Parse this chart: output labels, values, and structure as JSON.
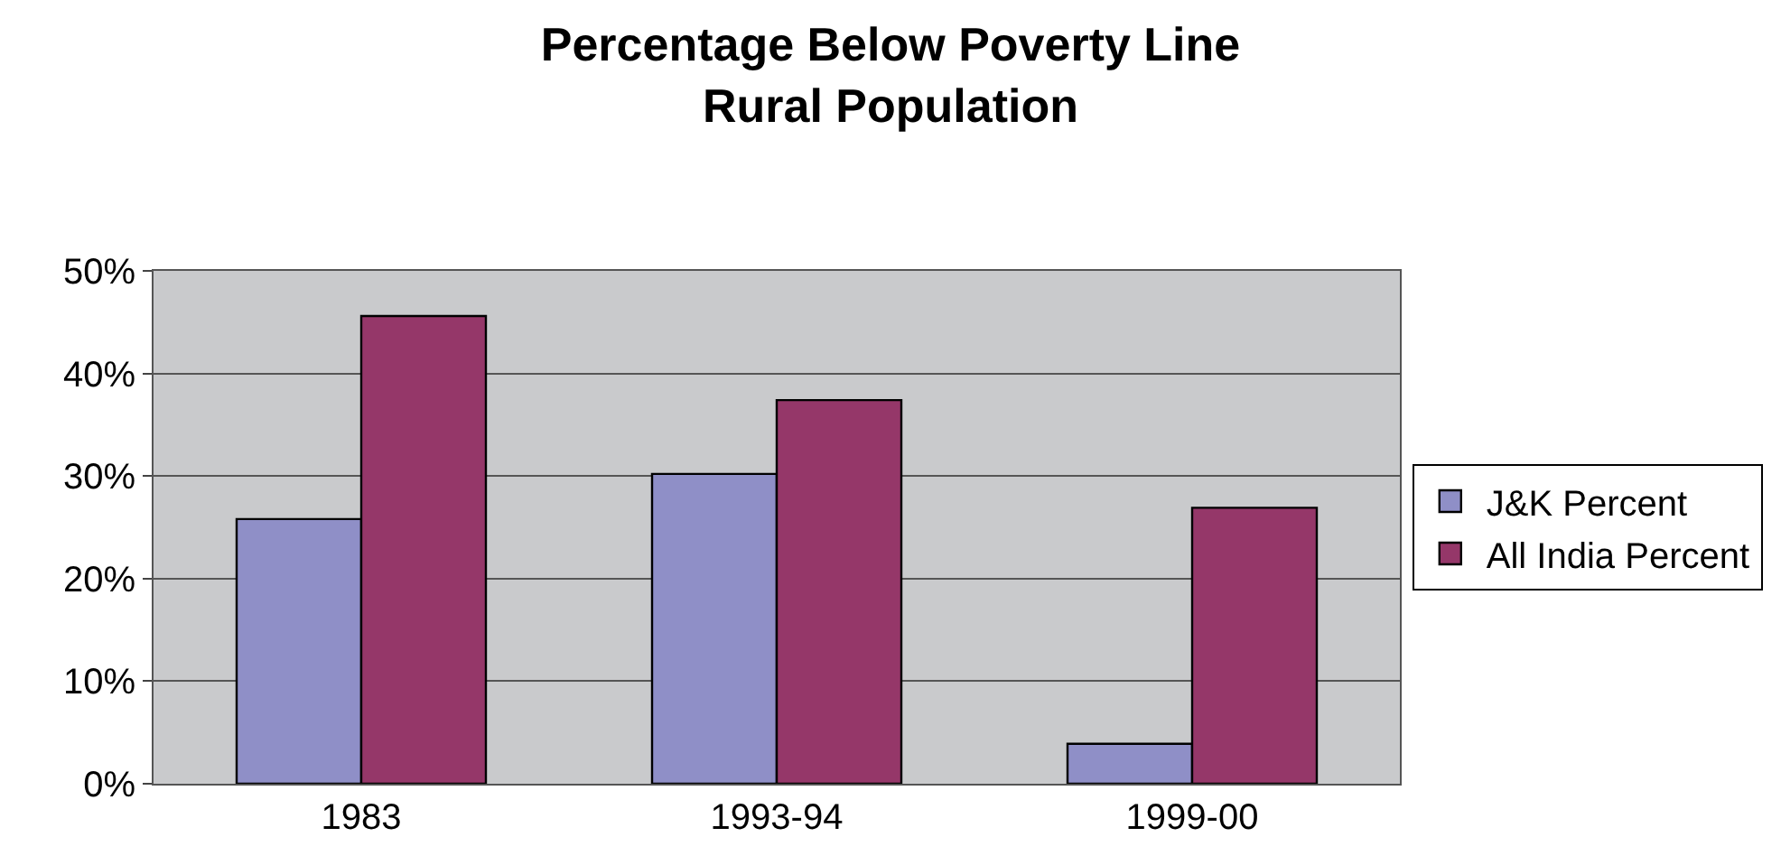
{
  "chart_data": {
    "type": "bar",
    "title": "Percentage Below Poverty Line\nRural Population",
    "categories": [
      "1983",
      "1993-94",
      "1999-00"
    ],
    "series": [
      {
        "name": "J&K Percent",
        "color": "#8f8fc7",
        "values": [
          25.8,
          30.2,
          3.9
        ]
      },
      {
        "name": "All India Percent",
        "color": "#953769",
        "values": [
          45.6,
          37.4,
          26.9
        ]
      }
    ],
    "ylim": [
      0,
      50
    ],
    "yticks": [
      {
        "value": 0,
        "label": "0%"
      },
      {
        "value": 10,
        "label": "10%"
      },
      {
        "value": 20,
        "label": "20%"
      },
      {
        "value": 30,
        "label": "30%"
      },
      {
        "value": 40,
        "label": "40%"
      },
      {
        "value": 50,
        "label": "50%"
      }
    ],
    "grid": "y",
    "legend": "right"
  }
}
